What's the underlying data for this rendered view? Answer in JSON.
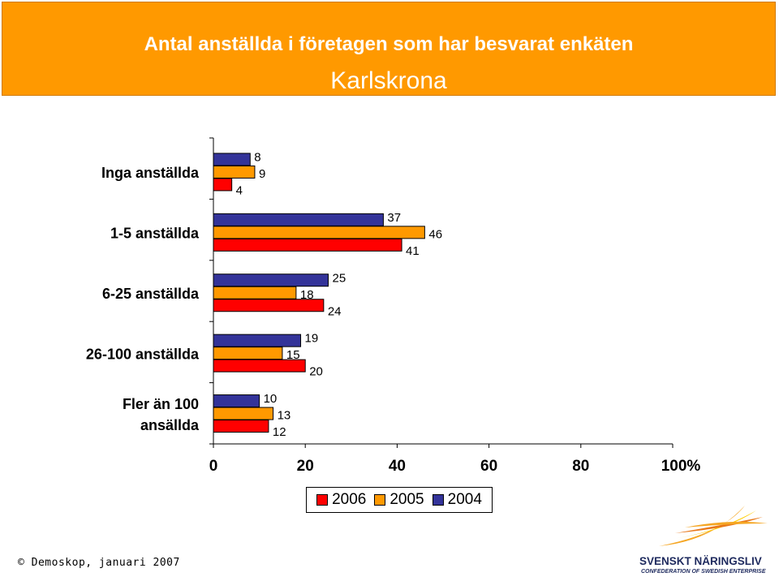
{
  "header": {
    "title": "Antal anställda i företagen som har besvarat enkäten",
    "subtitle": "Karlskrona"
  },
  "colors": {
    "header_bg": "#ff9900",
    "series_2006": "#ff0000",
    "series_2005": "#ff9900",
    "series_2004": "#333399"
  },
  "chart_data": {
    "type": "bar",
    "orientation": "horizontal",
    "title": "Antal anställda i företagen som har besvarat enkäten",
    "subtitle": "Karlskrona",
    "categories": [
      "Inga anställda",
      "1-5 anställda",
      "6-25 anställda",
      "26-100 anställda",
      "Fler än 100 ansällda"
    ],
    "series": [
      {
        "name": "2004",
        "color": "#333399",
        "values": [
          8,
          37,
          25,
          19,
          10
        ]
      },
      {
        "name": "2005",
        "color": "#ff9900",
        "values": [
          9,
          46,
          18,
          15,
          13
        ]
      },
      {
        "name": "2006",
        "color": "#ff0000",
        "values": [
          4,
          41,
          24,
          20,
          12
        ]
      }
    ],
    "xlim": [
      0,
      100
    ],
    "xticks": [
      "0",
      "20",
      "40",
      "60",
      "80",
      "100%"
    ],
    "xlabel": "",
    "ylabel": "",
    "legend": {
      "position": "bottom",
      "entries": [
        "2006",
        "2005",
        "2004"
      ]
    }
  },
  "footer": {
    "copyright": "© Demoskop, januari 2007",
    "logo_name": "SVENSKT NÄRINGSLIV",
    "logo_tagline": "CONFEDERATION OF SWEDISH ENTERPRISE"
  }
}
